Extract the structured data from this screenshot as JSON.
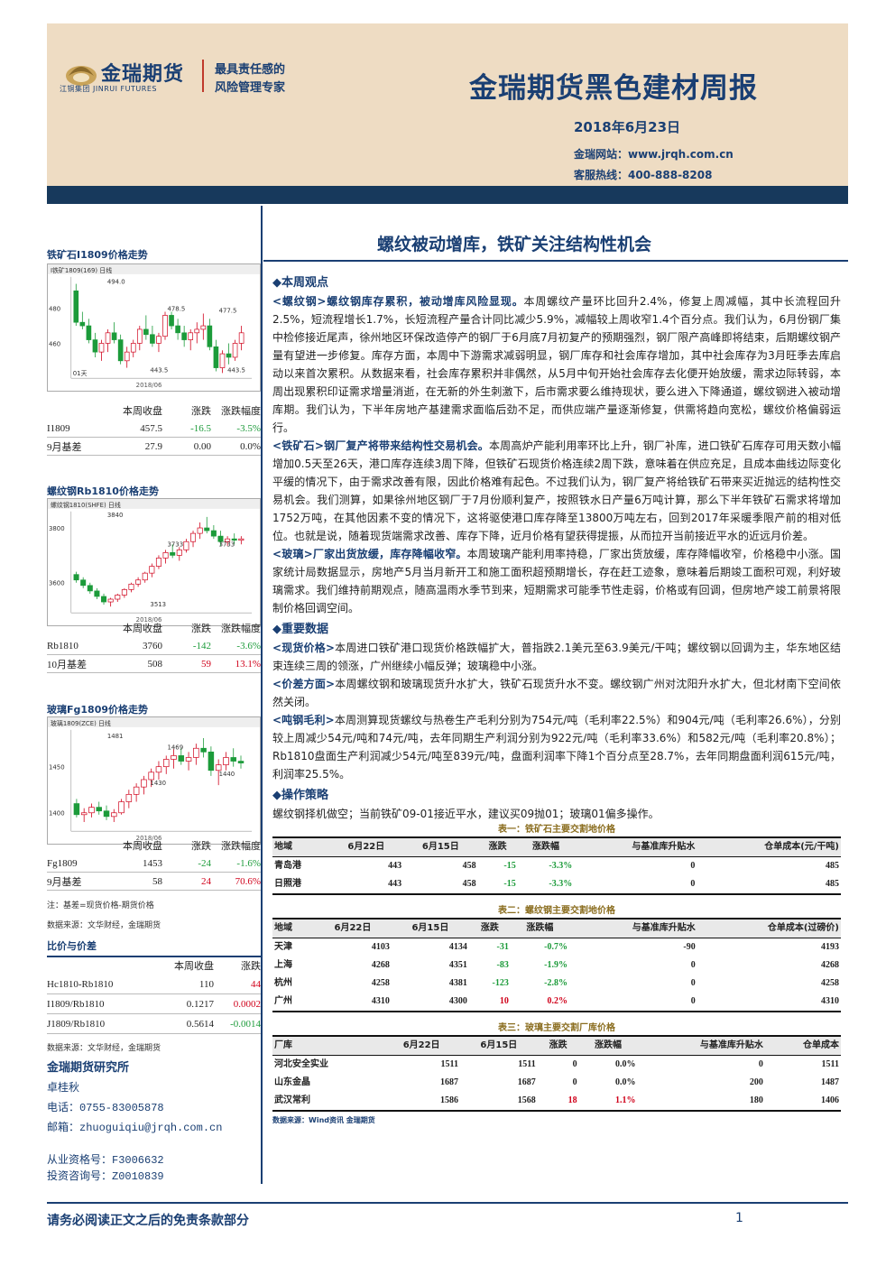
{
  "header": {
    "logo_name": "金瑞期货",
    "logo_en": "江铜集团  JINRUI FUTURES",
    "slogan1": "最具责任感的",
    "slogan2": "风险管理专家",
    "title": "金瑞期货黑色建材周报",
    "date": "2018年6月23日",
    "website": "金瑞网站：www.jrqh.com.cn",
    "hotline": "客服热线：400-888-8208"
  },
  "subtitle": "螺纹被动增库，铁矿关注结构性机会",
  "sidebar": {
    "charts": [
      {
        "title": "铁矿石I1809价格走势",
        "top_label": "I铁矿1809(169)  日线",
        "date_label": "2018/06",
        "annotations": [
          "494.0",
          "478.5",
          "477.5",
          "443.5",
          "443.5"
        ],
        "axis_labels": [
          "480",
          "460"
        ],
        "bottom_label": "01天",
        "candles": [
          [
            490,
            494,
            470,
            472
          ],
          [
            472,
            478,
            468,
            470
          ],
          [
            470,
            474,
            460,
            462
          ],
          [
            462,
            466,
            452,
            455
          ],
          [
            455,
            462,
            450,
            460
          ],
          [
            460,
            468,
            455,
            466
          ],
          [
            466,
            472,
            460,
            462
          ],
          [
            462,
            465,
            448,
            450
          ],
          [
            450,
            458,
            446,
            455
          ],
          [
            455,
            462,
            452,
            460
          ],
          [
            460,
            470,
            456,
            468
          ],
          [
            468,
            476,
            462,
            465
          ],
          [
            465,
            470,
            458,
            460
          ],
          [
            460,
            466,
            455,
            464
          ],
          [
            464,
            478,
            462,
            476
          ],
          [
            476,
            478,
            468,
            470
          ],
          [
            470,
            474,
            462,
            466
          ],
          [
            466,
            470,
            458,
            462
          ],
          [
            462,
            468,
            456,
            466
          ],
          [
            466,
            472,
            460,
            468
          ],
          [
            468,
            477,
            462,
            470
          ],
          [
            470,
            474,
            456,
            458
          ],
          [
            458,
            462,
            444,
            446
          ],
          [
            446,
            456,
            443,
            454
          ],
          [
            454,
            460,
            448,
            452
          ],
          [
            452,
            462,
            450,
            460
          ],
          [
            460,
            470,
            456,
            466
          ]
        ],
        "ymin": 440,
        "ymax": 498
      },
      {
        "title": "螺纹钢Rb1810价格走势",
        "top_label": "螺纹钢1810(SHFE)  日线",
        "date_label": "2018/06",
        "annotations": [
          "3840",
          "3733",
          "3733",
          "3513"
        ],
        "axis_labels": [
          "3800",
          "3600"
        ],
        "bottom_label": "",
        "candles": [
          [
            3630,
            3640,
            3600,
            3610
          ],
          [
            3610,
            3620,
            3580,
            3590
          ],
          [
            3590,
            3600,
            3560,
            3570
          ],
          [
            3570,
            3580,
            3540,
            3550
          ],
          [
            3550,
            3560,
            3520,
            3530
          ],
          [
            3530,
            3545,
            3513,
            3540
          ],
          [
            3540,
            3560,
            3530,
            3555
          ],
          [
            3555,
            3580,
            3545,
            3575
          ],
          [
            3575,
            3600,
            3565,
            3595
          ],
          [
            3595,
            3620,
            3585,
            3610
          ],
          [
            3610,
            3640,
            3600,
            3635
          ],
          [
            3635,
            3670,
            3620,
            3660
          ],
          [
            3660,
            3700,
            3650,
            3690
          ],
          [
            3690,
            3720,
            3670,
            3710
          ],
          [
            3710,
            3740,
            3690,
            3700
          ],
          [
            3700,
            3730,
            3680,
            3720
          ],
          [
            3720,
            3760,
            3710,
            3750
          ],
          [
            3750,
            3790,
            3730,
            3780
          ],
          [
            3780,
            3820,
            3760,
            3800
          ],
          [
            3800,
            3840,
            3780,
            3790
          ],
          [
            3790,
            3810,
            3760,
            3770
          ],
          [
            3770,
            3790,
            3733,
            3750
          ],
          [
            3750,
            3770,
            3735,
            3760
          ],
          [
            3760,
            3780,
            3740,
            3755
          ],
          [
            3755,
            3770,
            3740,
            3760
          ]
        ],
        "ymin": 3490,
        "ymax": 3860
      },
      {
        "title": "玻璃Fg1809价格走势",
        "top_label": "玻璃1809(ZCE)  日线",
        "date_label": "2018/06",
        "annotations": [
          "1481",
          "1469",
          "1440",
          "1430"
        ],
        "axis_labels": [
          "1450",
          "1400"
        ],
        "bottom_label": "",
        "candles": [
          [
            1410,
            1415,
            1395,
            1398
          ],
          [
            1398,
            1405,
            1390,
            1400
          ],
          [
            1400,
            1410,
            1395,
            1406
          ],
          [
            1406,
            1412,
            1398,
            1402
          ],
          [
            1402,
            1408,
            1392,
            1396
          ],
          [
            1396,
            1404,
            1390,
            1400
          ],
          [
            1400,
            1415,
            1398,
            1412
          ],
          [
            1412,
            1425,
            1405,
            1420
          ],
          [
            1420,
            1432,
            1412,
            1428
          ],
          [
            1428,
            1440,
            1420,
            1436
          ],
          [
            1436,
            1448,
            1428,
            1444
          ],
          [
            1444,
            1456,
            1436,
            1450
          ],
          [
            1450,
            1462,
            1442,
            1458
          ],
          [
            1458,
            1469,
            1448,
            1462
          ],
          [
            1462,
            1470,
            1452,
            1456
          ],
          [
            1456,
            1466,
            1446,
            1460
          ],
          [
            1460,
            1475,
            1452,
            1470
          ],
          [
            1470,
            1481,
            1460,
            1466
          ],
          [
            1466,
            1472,
            1440,
            1446
          ],
          [
            1446,
            1458,
            1430,
            1452
          ],
          [
            1452,
            1466,
            1446,
            1460
          ],
          [
            1460,
            1470,
            1450,
            1456
          ],
          [
            1456,
            1462,
            1448,
            1454
          ]
        ],
        "ymin": 1380,
        "ymax": 1490
      }
    ],
    "qheader": [
      "本周收盘",
      "涨跌",
      "涨跌幅度"
    ],
    "q1": [
      [
        "I1809",
        "457.5",
        "-16.5",
        "-3.5%"
      ],
      [
        "9月基差",
        "27.9",
        "0.00",
        "0.0%"
      ]
    ],
    "q2": [
      [
        "Rb1810",
        "3760",
        "-142",
        "-3.6%"
      ],
      [
        "10月基差",
        "508",
        "59",
        "13.1%"
      ]
    ],
    "q3": [
      [
        "Fg1809",
        "1453",
        "-24",
        "-1.6%"
      ],
      [
        "9月基差",
        "58",
        "24",
        "70.6%"
      ]
    ],
    "note1": "注：基差=现货价格-期货价格",
    "note2": "数据来源：文华财经，金瑞期货",
    "ratio_title": "比价与价差",
    "ratio_header": [
      "本周收盘",
      "涨跌"
    ],
    "ratios": [
      [
        "Hc1810-Rb1810",
        "110",
        "44"
      ],
      [
        "I1809/Rb1810",
        "0.1217",
        "0.0002"
      ],
      [
        "J1809/Rb1810",
        "0.5614",
        "-0.0014"
      ]
    ],
    "note3": "数据来源：文华财经，金瑞期货",
    "inst": "金瑞期货研究所",
    "author": "卓桂秋",
    "phone": "电话：0755-83005878",
    "email": "邮箱：zhuoguiqiu@jrqh.com.cn",
    "cert1": "从业资格号：F3006632",
    "cert2": "投资咨询号：Z0010839"
  },
  "main": {
    "s1": "◆本周观点",
    "p1_tag": "<螺纹钢>螺纹钢库存累积，被动增库风险显现。",
    "p1": "本周螺纹产量环比回升2.4%，修复上周减幅，其中长流程回升2.5%，短流程增长1.7%，长短流程产量合计同比减少5.9%，减幅较上周收窄1.4个百分点。我们认为，6月份钢厂集中检修接近尾声，徐州地区环保改造停产的钢厂于6月底7月初复产的预期强烈，钢厂限产高峰即将结束，后期螺纹钢产量有望进一步修复。库存方面，本周中下游需求减弱明显，钢厂库存和社会库存增加，其中社会库存为3月旺季去库启动以来首次累积。从数据来看，社会库存累积并非偶然，从5月中旬开始社会库存去化便开始放缓，需求边际转弱，本周出现累积印证需求增量消逝，在无新的外生刺激下，后市需求要么维持现状，要么进入下降通道，螺纹钢进入被动增库期。我们认为，下半年房地产基建需求面临后劲不足，而供应端产量逐渐修复，供需将趋向宽松，螺纹价格偏弱运行。",
    "p2_tag": "<铁矿石>钢厂复产将带来结构性交易机会。",
    "p2": "本周高炉产能利用率环比上升，钢厂补库，进口铁矿石库存可用天数小幅增加0.5天至26天，港口库存连续3周下降，但铁矿石现货价格连续2周下跌，意味着在供应充足，且成本曲线边际变化平缓的情况下，由于需求改善有限，因此价格难有起色。不过我们认为，钢厂复产将给铁矿石带来买近抛远的结构性交易机会。我们测算，如果徐州地区钢厂于7月份顺利复产，按照铁水日产量6万吨计算，那么下半年铁矿石需求将增加1752万吨，在其他因素不变的情况下，这将驱使港口库存降至13800万吨左右，回到2017年采暖季限产前的相对低位。也就是说，随着现货端需求改善、库存下降，近月价格有望获得提振，从而拉开当前接近平水的近远月价差。",
    "p3_tag": "<玻璃>厂家出货放缓，库存降幅收窄。",
    "p3": "本周玻璃产能利用率持稳，厂家出货放缓，库存降幅收窄，价格稳中小涨。国家统计局数据显示，房地产5月当月新开工和施工面积超预期增长，存在赶工迹象，意味着后期竣工面积可观，利好玻璃需求。我们维持前期观点，随高温雨水季节到来，短期需求可能季节性走弱，价格或有回调，但房地产竣工前景将限制价格回调空间。",
    "s2": "◆重要数据",
    "d1_tag": "<现货价格>",
    "d1": "本周进口铁矿港口现货价格跌幅扩大，普指跌2.1美元至63.9美元/干吨；螺纹钢以回调为主，华东地区结束连续三周的领涨，广州继续小幅反弹；玻璃稳中小涨。",
    "d2_tag": "<价差方面>",
    "d2": "本周螺纹钢和玻璃现货升水扩大，铁矿石现货升水不变。螺纹钢广州对沈阳升水扩大，但北材南下空间依然关闭。",
    "d3_tag": "<吨钢毛利>",
    "d3": "本周测算现货螺纹与热卷生产毛利分别为754元/吨（毛利率22.5%）和904元/吨（毛利率26.6%），分别较上周减少54元/吨和74元/吨，去年同期生产利润分别为922元/吨（毛利率33.6%）和582元/吨（毛利率20.8%）；Rb1810盘面生产利润减少54元/吨至839元/吨，盘面利润率下降1个百分点至28.7%，去年同期盘面利润615元/吨，利润率25.5%。",
    "s3": "◆操作策略",
    "strategy": "螺纹钢择机做空；当前铁矿09-01接近平水，建议买09抛01；玻璃01偏多操作。",
    "t1_title": "表一：铁矿石主要交割地价格",
    "t1_head": [
      "地域",
      "6月22日",
      "6月15日",
      "涨跌",
      "涨跌幅",
      "与基准库升贴水",
      "仓单成本(元/干吨)"
    ],
    "t1_rows": [
      [
        "青岛港",
        "443",
        "458",
        "-15",
        "-3.3%",
        "0",
        "485"
      ],
      [
        "日照港",
        "443",
        "458",
        "-15",
        "-3.3%",
        "0",
        "485"
      ]
    ],
    "t2_title": "表二：螺纹钢主要交割地价格",
    "t2_head": [
      "地域",
      "6月22日",
      "6月15日",
      "涨跌",
      "涨跌幅",
      "与基准库升贴水",
      "仓单成本(过磅价)"
    ],
    "t2_rows": [
      [
        "天津",
        "4103",
        "4134",
        "-31",
        "-0.7%",
        "-90",
        "4193"
      ],
      [
        "上海",
        "4268",
        "4351",
        "-83",
        "-1.9%",
        "0",
        "4268"
      ],
      [
        "杭州",
        "4258",
        "4381",
        "-123",
        "-2.8%",
        "0",
        "4258"
      ],
      [
        "广州",
        "4310",
        "4300",
        "10",
        "0.2%",
        "0",
        "4310"
      ]
    ],
    "t3_title": "表三：玻璃主要交割厂库价格",
    "t3_head": [
      "厂库",
      "6月22日",
      "6月15日",
      "涨跌",
      "涨跌幅",
      "与基准库升贴水",
      "仓单成本"
    ],
    "t3_rows": [
      [
        "河北安全实业",
        "1511",
        "1511",
        "0",
        "0.0%",
        "0",
        "1511"
      ],
      [
        "山东金晶",
        "1687",
        "1687",
        "0",
        "0.0%",
        "200",
        "1487"
      ],
      [
        "武汉常利",
        "1586",
        "1568",
        "18",
        "1.1%",
        "180",
        "1406"
      ]
    ],
    "source": "数据来源：Wind资讯  金瑞期货"
  },
  "footer": "请务必阅读正文之后的免责条款部分",
  "page_no": "1"
}
